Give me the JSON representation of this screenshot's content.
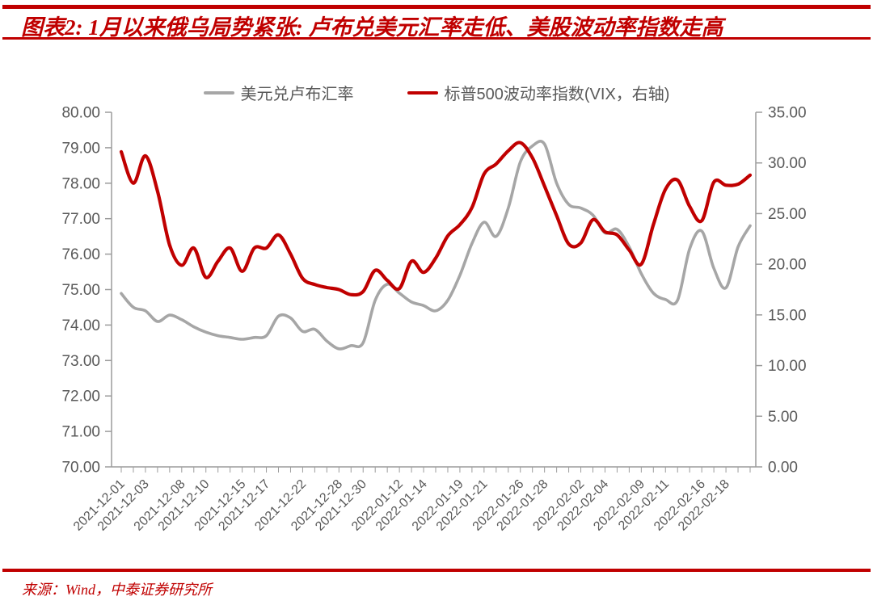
{
  "header": {
    "title": "图表2: 1月以来俄乌局势紧张: 卢布兑美元汇率走低、美股波动率指数走高"
  },
  "footer": {
    "source": "来源：Wind，中泰证券研究所"
  },
  "colors": {
    "accent_red": "#c00000",
    "series_gray": "#a6a6a6",
    "series_red": "#c00000",
    "axis_line": "#9c9c9c",
    "tick_text": "#595959"
  },
  "legend": [
    {
      "label": "美元兑卢布汇率",
      "color": "#a6a6a6"
    },
    {
      "label": "标普500波动率指数(VIX，右轴)",
      "color": "#c00000"
    }
  ],
  "chart_data": {
    "type": "line",
    "smoothed": true,
    "grid": false,
    "legend_position": "top",
    "x": [
      "2021-12-01",
      "2021-12-02",
      "2021-12-03",
      "2021-12-06",
      "2021-12-07",
      "2021-12-08",
      "2021-12-09",
      "2021-12-10",
      "2021-12-13",
      "2021-12-14",
      "2021-12-15",
      "2021-12-16",
      "2021-12-17",
      "2021-12-20",
      "2021-12-21",
      "2021-12-22",
      "2021-12-23",
      "2021-12-27",
      "2021-12-28",
      "2021-12-29",
      "2021-12-30",
      "2022-01-10",
      "2022-01-11",
      "2022-01-12",
      "2022-01-13",
      "2022-01-14",
      "2022-01-17",
      "2022-01-18",
      "2022-01-19",
      "2022-01-20",
      "2022-01-21",
      "2022-01-24",
      "2022-01-25",
      "2022-01-26",
      "2022-01-27",
      "2022-01-28",
      "2022-01-31",
      "2022-02-01",
      "2022-02-02",
      "2022-02-03",
      "2022-02-04",
      "2022-02-07",
      "2022-02-08",
      "2022-02-09",
      "2022-02-10",
      "2022-02-11",
      "2022-02-14",
      "2022-02-15",
      "2022-02-16",
      "2022-02-17",
      "2022-02-18",
      "2022-02-21",
      "2022-02-22"
    ],
    "series": [
      {
        "name": "美元兑卢布汇率",
        "axis": "left",
        "color": "#a6a6a6",
        "values": [
          74.89,
          74.5,
          74.4,
          74.1,
          74.28,
          74.15,
          73.95,
          73.8,
          73.7,
          73.65,
          73.6,
          73.65,
          73.7,
          74.25,
          74.2,
          73.82,
          73.88,
          73.55,
          73.33,
          73.42,
          73.5,
          74.7,
          75.15,
          74.9,
          74.65,
          74.55,
          74.4,
          74.7,
          75.4,
          76.3,
          76.9,
          76.5,
          77.3,
          78.6,
          79.05,
          79.1,
          78.0,
          77.4,
          77.3,
          77.1,
          76.6,
          76.7,
          76.2,
          75.45,
          74.9,
          74.72,
          74.7,
          76.15,
          76.65,
          75.6,
          75.05,
          76.2,
          76.8
        ]
      },
      {
        "name": "标普500波动率指数(VIX，右轴)",
        "axis": "right",
        "color": "#c00000",
        "values": [
          31.1,
          28.0,
          30.7,
          27.2,
          21.9,
          19.9,
          21.6,
          18.7,
          20.3,
          21.6,
          19.3,
          21.6,
          21.6,
          22.9,
          21.0,
          18.6,
          18.0,
          17.7,
          17.5,
          17.0,
          17.3,
          19.4,
          18.4,
          17.6,
          20.3,
          19.2,
          20.6,
          22.8,
          23.9,
          25.6,
          28.9,
          29.9,
          31.2,
          32.0,
          30.5,
          27.7,
          24.8,
          22.0,
          22.1,
          24.4,
          23.2,
          22.9,
          21.4,
          20.0,
          23.9,
          27.4,
          28.3,
          25.7,
          24.3,
          28.1,
          27.8,
          27.9,
          28.8
        ]
      }
    ],
    "left_axis": {
      "min": 70,
      "max": 80,
      "step": 1,
      "tick_labels": [
        "80.00",
        "79.00",
        "78.00",
        "77.00",
        "76.00",
        "75.00",
        "74.00",
        "73.00",
        "72.00",
        "71.00",
        "70.00"
      ]
    },
    "right_axis": {
      "min": 0,
      "max": 35,
      "step": 5,
      "tick_labels": [
        "35.00",
        "30.00",
        "25.00",
        "20.00",
        "15.00",
        "10.00",
        "5.00",
        "0.00"
      ]
    },
    "x_tick_labels": [
      "2021-12-01",
      "2021-12-03",
      "2021-12-08",
      "2021-12-10",
      "2021-12-15",
      "2021-12-17",
      "2021-12-22",
      "2021-12-28",
      "2021-12-30",
      "2022-01-12",
      "2022-01-14",
      "2022-01-19",
      "2022-01-21",
      "2022-01-26",
      "2022-01-28",
      "2022-02-02",
      "2022-02-04",
      "2022-02-09",
      "2022-02-11",
      "2022-02-16",
      "2022-02-18"
    ],
    "x_label_indices": [
      0,
      2,
      5,
      7,
      10,
      12,
      15,
      18,
      20,
      23,
      25,
      28,
      30,
      33,
      35,
      38,
      40,
      43,
      45,
      48,
      50
    ]
  }
}
